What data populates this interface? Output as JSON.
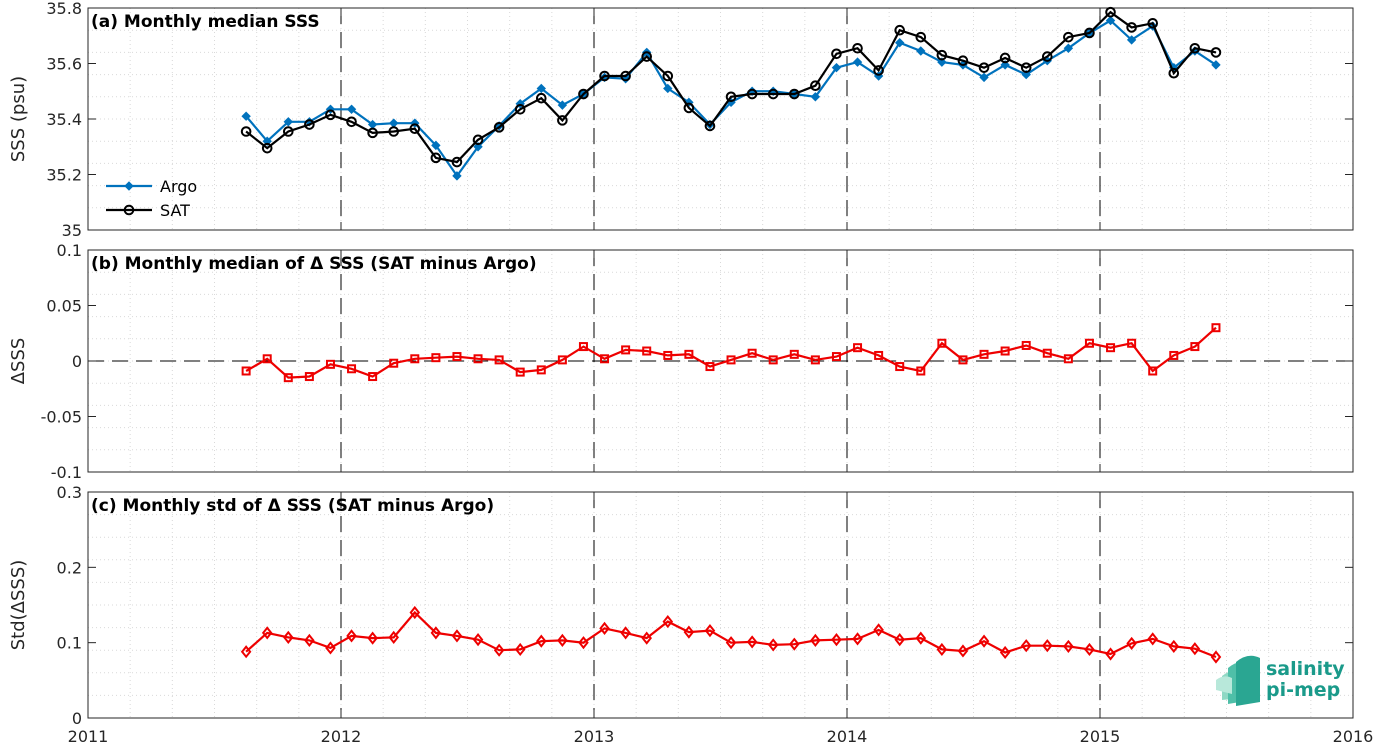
{
  "colors": {
    "argo": "#0072bd",
    "sat": "#000000",
    "delta": "#ee0000",
    "grid": "#d9d9d9"
  },
  "logo": {
    "line1": "salinity",
    "line2": "pi-mep"
  },
  "chart_data": [
    {
      "type": "line",
      "title": "(a) Monthly median SSS",
      "ylabel": "SSS (psu)",
      "xlim": [
        2011,
        2016
      ],
      "ylim": [
        35,
        35.8
      ],
      "xticks": [
        "2011",
        "2012",
        "2013",
        "2014",
        "2015",
        "2016"
      ],
      "yticks": [
        "35",
        "35.2",
        "35.4",
        "35.6",
        "35.8"
      ],
      "grid": true,
      "legend": "lower-left",
      "x_months": [
        "2011-08",
        "2011-09",
        "2011-10",
        "2011-11",
        "2011-12",
        "2012-01",
        "2012-02",
        "2012-03",
        "2012-04",
        "2012-05",
        "2012-06",
        "2012-07",
        "2012-08",
        "2012-09",
        "2012-10",
        "2012-11",
        "2012-12",
        "2013-01",
        "2013-02",
        "2013-03",
        "2013-04",
        "2013-05",
        "2013-06",
        "2013-07",
        "2013-08",
        "2013-09",
        "2013-10",
        "2013-11",
        "2013-12",
        "2014-01",
        "2014-02",
        "2014-03",
        "2014-04",
        "2014-05",
        "2014-06",
        "2014-07",
        "2014-08",
        "2014-09",
        "2014-10",
        "2014-11",
        "2014-12",
        "2015-01",
        "2015-02",
        "2015-03",
        "2015-04",
        "2015-05",
        "2015-06"
      ],
      "series": [
        {
          "name": "Argo",
          "marker": "diamond",
          "values": [
            35.41,
            35.32,
            35.39,
            35.39,
            35.435,
            35.435,
            35.38,
            35.385,
            35.385,
            35.305,
            35.195,
            35.3,
            35.375,
            35.455,
            35.51,
            35.45,
            35.49,
            35.55,
            35.545,
            35.64,
            35.51,
            35.46,
            35.38,
            35.46,
            35.5,
            35.5,
            35.49,
            35.48,
            35.585,
            35.605,
            35.555,
            35.675,
            35.645,
            35.605,
            35.595,
            35.55,
            35.595,
            35.56,
            35.61,
            35.655,
            35.71,
            35.755,
            35.685,
            35.735,
            35.585,
            35.645,
            35.595
          ]
        },
        {
          "name": "SAT",
          "marker": "circle",
          "values": [
            35.355,
            35.295,
            35.355,
            35.38,
            35.415,
            35.39,
            35.35,
            35.355,
            35.365,
            35.26,
            35.245,
            35.325,
            35.37,
            35.435,
            35.475,
            35.395,
            35.49,
            35.555,
            35.555,
            35.625,
            35.555,
            35.44,
            35.375,
            35.48,
            35.49,
            35.49,
            35.49,
            35.52,
            35.635,
            35.655,
            35.575,
            35.72,
            35.695,
            35.63,
            35.61,
            35.585,
            35.62,
            35.585,
            35.625,
            35.695,
            35.71,
            35.785,
            35.73,
            35.745,
            35.565,
            35.655,
            35.64
          ]
        }
      ]
    },
    {
      "type": "line",
      "title": "(b) Monthly median of Δ SSS (SAT minus Argo)",
      "ylabel": "ΔSSS",
      "xlim": [
        2011,
        2016
      ],
      "ylim": [
        -0.1,
        0.1
      ],
      "xticks": [
        "2011",
        "2012",
        "2013",
        "2014",
        "2015",
        "2016"
      ],
      "yticks": [
        "-0.1",
        "-0.05",
        "0",
        "0.05",
        "0.1"
      ],
      "grid": true,
      "zero_line": true,
      "x_months": [
        "2011-08",
        "2011-09",
        "2011-10",
        "2011-11",
        "2011-12",
        "2012-01",
        "2012-02",
        "2012-03",
        "2012-04",
        "2012-05",
        "2012-06",
        "2012-07",
        "2012-08",
        "2012-09",
        "2012-10",
        "2012-11",
        "2012-12",
        "2013-01",
        "2013-02",
        "2013-03",
        "2013-04",
        "2013-05",
        "2013-06",
        "2013-07",
        "2013-08",
        "2013-09",
        "2013-10",
        "2013-11",
        "2013-12",
        "2014-01",
        "2014-02",
        "2014-03",
        "2014-04",
        "2014-05",
        "2014-06",
        "2014-07",
        "2014-08",
        "2014-09",
        "2014-10",
        "2014-11",
        "2014-12",
        "2015-01",
        "2015-02",
        "2015-03",
        "2015-04",
        "2015-05",
        "2015-06"
      ],
      "series": [
        {
          "marker": "square",
          "values": [
            -0.009,
            0.002,
            -0.015,
            -0.014,
            -0.003,
            -0.007,
            -0.014,
            -0.002,
            0.002,
            0.003,
            0.004,
            0.002,
            0.001,
            -0.01,
            -0.008,
            0.001,
            0.013,
            0.002,
            0.01,
            0.009,
            0.005,
            0.006,
            -0.005,
            0.001,
            0.007,
            0.001,
            0.006,
            0.001,
            0.004,
            0.012,
            0.005,
            -0.005,
            -0.009,
            0.016,
            0.001,
            0.006,
            0.009,
            0.014,
            0.007,
            0.002,
            0.016,
            0.012,
            0.016,
            -0.009,
            0.005,
            0.013,
            0.03
          ]
        }
      ]
    },
    {
      "type": "line",
      "title": "(c) Monthly std of Δ SSS (SAT minus Argo)",
      "ylabel": "Std(ΔSSS)",
      "xlim": [
        2011,
        2016
      ],
      "ylim": [
        0,
        0.3
      ],
      "xticks": [
        "2011",
        "2012",
        "2013",
        "2014",
        "2015",
        "2016"
      ],
      "xtick_labels_shown": true,
      "yticks": [
        "0",
        "0.1",
        "0.2",
        "0.3"
      ],
      "grid": true,
      "x_months": [
        "2011-08",
        "2011-09",
        "2011-10",
        "2011-11",
        "2011-12",
        "2012-01",
        "2012-02",
        "2012-03",
        "2012-04",
        "2012-05",
        "2012-06",
        "2012-07",
        "2012-08",
        "2012-09",
        "2012-10",
        "2012-11",
        "2012-12",
        "2013-01",
        "2013-02",
        "2013-03",
        "2013-04",
        "2013-05",
        "2013-06",
        "2013-07",
        "2013-08",
        "2013-09",
        "2013-10",
        "2013-11",
        "2013-12",
        "2014-01",
        "2014-02",
        "2014-03",
        "2014-04",
        "2014-05",
        "2014-06",
        "2014-07",
        "2014-08",
        "2014-09",
        "2014-10",
        "2014-11",
        "2014-12",
        "2015-01",
        "2015-02",
        "2015-03",
        "2015-04",
        "2015-05",
        "2015-06"
      ],
      "series": [
        {
          "marker": "diamond",
          "values": [
            0.088,
            0.113,
            0.107,
            0.103,
            0.093,
            0.109,
            0.106,
            0.107,
            0.14,
            0.113,
            0.109,
            0.104,
            0.09,
            0.091,
            0.102,
            0.103,
            0.1,
            0.119,
            0.113,
            0.106,
            0.128,
            0.114,
            0.116,
            0.1,
            0.101,
            0.097,
            0.098,
            0.103,
            0.104,
            0.105,
            0.117,
            0.104,
            0.106,
            0.091,
            0.089,
            0.102,
            0.087,
            0.096,
            0.096,
            0.095,
            0.091,
            0.085,
            0.099,
            0.105,
            0.095,
            0.092,
            0.081
          ]
        }
      ]
    }
  ]
}
